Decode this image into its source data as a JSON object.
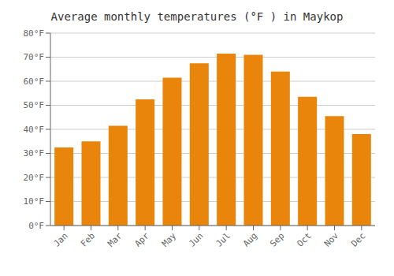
{
  "chart_data": {
    "type": "bar",
    "title": "Average monthly temperatures (°F ) in Maykop",
    "categories": [
      "Jan",
      "Feb",
      "Mar",
      "Apr",
      "May",
      "Jun",
      "Jul",
      "Aug",
      "Sep",
      "Oct",
      "Nov",
      "Dec"
    ],
    "values": [
      32.5,
      35.0,
      41.5,
      52.5,
      61.5,
      67.5,
      71.5,
      71.0,
      64.0,
      53.5,
      45.5,
      38.0
    ],
    "color": "#E8850A",
    "ylim": [
      0,
      80
    ],
    "yticks": [
      {
        "value": 0,
        "label": "0°F"
      },
      {
        "value": 10,
        "label": "10°F"
      },
      {
        "value": 20,
        "label": "20°F"
      },
      {
        "value": 30,
        "label": "30°F"
      },
      {
        "value": 40,
        "label": "40°F"
      },
      {
        "value": 50,
        "label": "50°F"
      },
      {
        "value": 60,
        "label": "60°F"
      },
      {
        "value": 70,
        "label": "70°F"
      },
      {
        "value": 80,
        "label": "80°F"
      }
    ],
    "grid": true
  }
}
